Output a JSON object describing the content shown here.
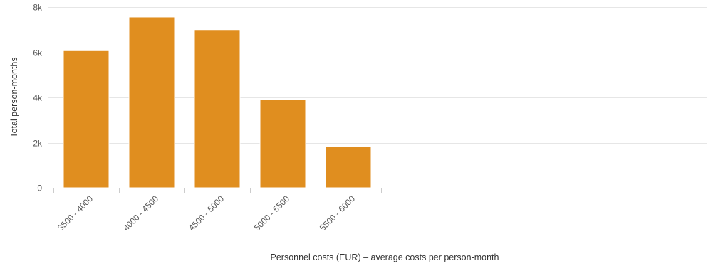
{
  "chart_data": {
    "type": "bar",
    "title": "",
    "xlabel": "Personnel costs (EUR) – average costs per person-month",
    "ylabel": "Total person-months",
    "categories": [
      "3500 - 4000",
      "4000 - 4500",
      "4500 - 5000",
      "5000 - 5500",
      "5500 - 6000"
    ],
    "values": [
      6070,
      7560,
      7000,
      3920,
      1840
    ],
    "ylim": [
      0,
      8000
    ],
    "yticks": [
      0,
      2000,
      4000,
      6000,
      8000
    ],
    "ytick_labels": [
      "0",
      "2k",
      "4k",
      "6k",
      "8k"
    ],
    "grid": true,
    "bar_color": "#e08e1f"
  }
}
